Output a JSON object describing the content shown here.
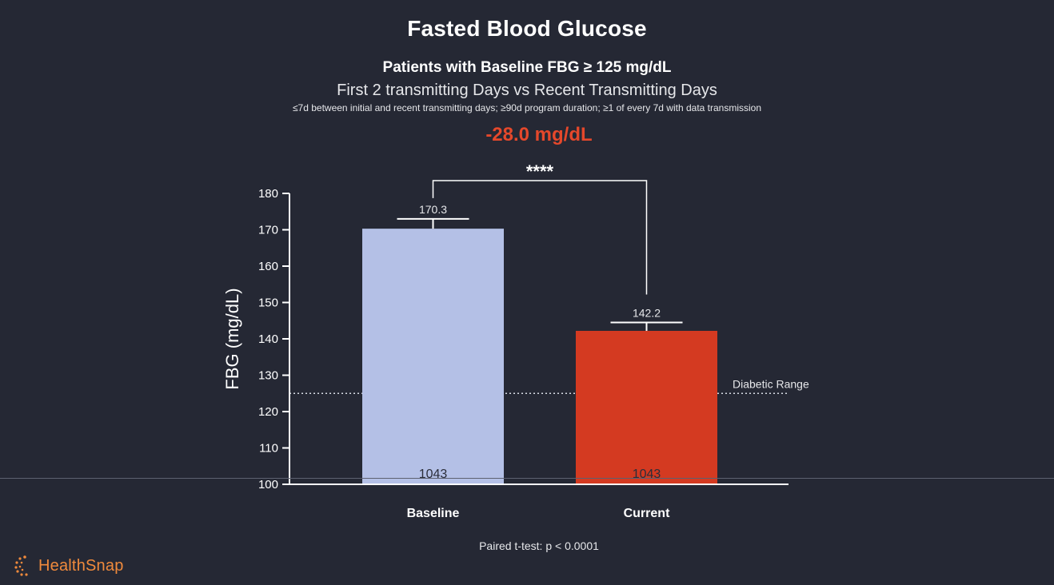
{
  "title": "Fasted Blood Glucose",
  "subtitle": "Patients with Baseline FBG ≥ 125 mg/dL",
  "subtitle2": "First 2 transmitting Days vs Recent Transmitting Days",
  "criteria": "≤7d between initial and recent transmitting days; ≥90d program duration; ≥1 of every 7d with data transmission",
  "delta_label": "-28.0 mg/dL",
  "footnote": "Paired t-test: p < 0.0001",
  "brand": {
    "name": "HealthSnap",
    "logo_icon": "healthsnap-logo-icon"
  },
  "colors": {
    "background": "#252834",
    "baseline_bar": "#b4c0e6",
    "current_bar": "#d43a21",
    "delta_text": "#e5482b",
    "axis": "#ffffff",
    "brand": "#f08a3c"
  },
  "chart_data": {
    "type": "bar",
    "categories": [
      "Baseline",
      "Current"
    ],
    "values": [
      170.3,
      142.2
    ],
    "value_labels": [
      "170.3",
      "142.2"
    ],
    "error_upper": [
      173.0,
      144.5
    ],
    "n_labels": [
      "1043",
      "1043"
    ],
    "ylabel": "FBG (mg/dL)",
    "ylim": [
      100,
      180
    ],
    "yticks": [
      100,
      110,
      120,
      130,
      140,
      150,
      160,
      170,
      180
    ],
    "reference_line": {
      "value": 125,
      "label": "Diabetic Range"
    },
    "significance": "****",
    "grid": false,
    "legend": "none"
  }
}
